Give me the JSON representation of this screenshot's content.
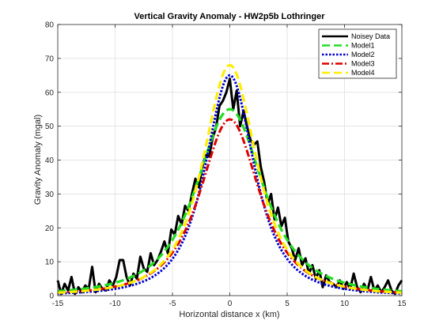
{
  "chart_data": {
    "type": "line",
    "title": "Vertical Gravity Anomaly - HW2p5b Lothringer",
    "xlabel": "Horizontal distance x (km)",
    "ylabel": "Gravity Anomaly (mgal)",
    "xlim": [
      -15,
      15
    ],
    "ylim": [
      0,
      80
    ],
    "xticks": [
      -15,
      -10,
      -5,
      0,
      5,
      10,
      15
    ],
    "yticks": [
      0,
      10,
      20,
      30,
      40,
      50,
      60,
      70,
      80
    ],
    "grid": true,
    "legend_position": "top-right",
    "series": [
      {
        "name": "Noisey Data",
        "color": "#000000",
        "style": "solid",
        "x": [
          -15,
          -14.7,
          -14.4,
          -14.1,
          -13.8,
          -13.5,
          -13.2,
          -12.9,
          -12.6,
          -12.3,
          -12,
          -11.7,
          -11.4,
          -11.1,
          -10.8,
          -10.5,
          -10.2,
          -9.9,
          -9.6,
          -9.3,
          -9,
          -8.7,
          -8.4,
          -8.1,
          -7.8,
          -7.5,
          -7.2,
          -6.9,
          -6.6,
          -6.3,
          -6,
          -5.7,
          -5.4,
          -5.1,
          -4.8,
          -4.5,
          -4.2,
          -3.9,
          -3.6,
          -3.3,
          -3,
          -2.7,
          -2.4,
          -2.1,
          -1.8,
          -1.5,
          -1.2,
          -0.9,
          -0.6,
          -0.3,
          0,
          0.3,
          0.6,
          0.9,
          1.2,
          1.5,
          1.8,
          2.1,
          2.4,
          2.7,
          3,
          3.3,
          3.6,
          3.9,
          4.2,
          4.5,
          4.8,
          5.1,
          5.4,
          5.7,
          6,
          6.3,
          6.6,
          6.9,
          7.2,
          7.5,
          7.8,
          8.1,
          8.4,
          8.7,
          9,
          9.3,
          9.6,
          9.9,
          10.2,
          10.5,
          10.8,
          11.1,
          11.4,
          11.7,
          12,
          12.3,
          12.6,
          12.9,
          13.2,
          13.5,
          13.8,
          14.1,
          14.4,
          14.7,
          15
        ],
        "y": [
          4.5,
          0.5,
          3.5,
          1.5,
          5.5,
          0.5,
          2.5,
          1.0,
          3.0,
          2.0,
          8.5,
          1.0,
          3.5,
          2.0,
          1.5,
          4.5,
          3.0,
          5.5,
          10.5,
          10.5,
          5.5,
          3.0,
          6.5,
          5.0,
          11.5,
          8.0,
          7.0,
          12.5,
          9.0,
          10.5,
          13.0,
          16.0,
          12.5,
          19.5,
          18.0,
          23.5,
          21.0,
          26.5,
          25.0,
          30.0,
          34.5,
          32.0,
          38.0,
          41.5,
          41.0,
          46.5,
          49.5,
          56.0,
          57.5,
          60.0,
          64.0,
          55.0,
          60.5,
          50.0,
          54.5,
          50.0,
          46.0,
          44.5,
          45.5,
          38.0,
          33.5,
          27.0,
          30.0,
          22.5,
          26.0,
          20.5,
          23.0,
          16.0,
          14.0,
          10.5,
          14.0,
          9.0,
          11.0,
          6.5,
          9.0,
          5.0,
          7.5,
          2.5,
          6.0,
          4.0,
          3.5,
          2.5,
          4.5,
          2.0,
          4.0,
          2.0,
          6.5,
          2.5,
          1.0,
          3.5,
          1.5,
          5.5,
          1.5,
          3.0,
          1.0,
          2.5,
          4.5,
          1.5,
          0.5,
          3.0,
          4.5
        ]
      },
      {
        "name": "Model1",
        "color": "#22dd22",
        "style": "dashed",
        "amplitude": 55,
        "half_width": 4.5,
        "model": "dipole-like peak"
      },
      {
        "name": "Model2",
        "color": "#0000cc",
        "style": "dotted",
        "amplitude": 65,
        "half_width": 3.3,
        "model": "sphere"
      },
      {
        "name": "Model3",
        "color": "#dd0000",
        "style": "dashdot",
        "amplitude": 52,
        "half_width": 4.0,
        "model": "sphere"
      },
      {
        "name": "Model4",
        "color": "#ffee00",
        "style": "dashed",
        "amplitude": 68,
        "half_width": 3.6,
        "model": "sphere"
      }
    ]
  }
}
